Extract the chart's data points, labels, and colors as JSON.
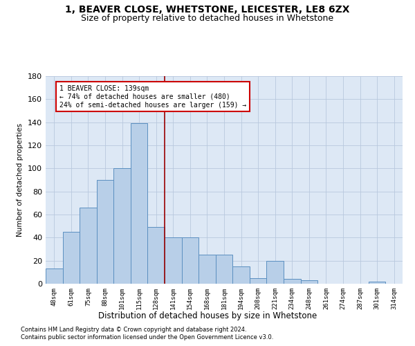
{
  "title": "1, BEAVER CLOSE, WHETSTONE, LEICESTER, LE8 6ZX",
  "subtitle": "Size of property relative to detached houses in Whetstone",
  "xlabel": "Distribution of detached houses by size in Whetstone",
  "ylabel": "Number of detached properties",
  "categories": [
    "48sqm",
    "61sqm",
    "75sqm",
    "88sqm",
    "101sqm",
    "115sqm",
    "128sqm",
    "141sqm",
    "154sqm",
    "168sqm",
    "181sqm",
    "194sqm",
    "208sqm",
    "221sqm",
    "234sqm",
    "248sqm",
    "261sqm",
    "274sqm",
    "287sqm",
    "301sqm",
    "314sqm"
  ],
  "values": [
    13,
    45,
    66,
    90,
    100,
    139,
    49,
    40,
    40,
    25,
    25,
    15,
    5,
    20,
    4,
    3,
    0,
    0,
    0,
    2,
    0
  ],
  "bar_color": "#b8cfe8",
  "bar_edge_color": "#5b8fc0",
  "vline_x": 6.5,
  "vline_color": "#990000",
  "ylim": [
    0,
    180
  ],
  "yticks": [
    0,
    20,
    40,
    60,
    80,
    100,
    120,
    140,
    160,
    180
  ],
  "annotation_line1": "1 BEAVER CLOSE: 139sqm",
  "annotation_line2": "← 74% of detached houses are smaller (480)",
  "annotation_line3": "24% of semi-detached houses are larger (159) →",
  "annotation_box_color": "#cc0000",
  "footer1": "Contains HM Land Registry data © Crown copyright and database right 2024.",
  "footer2": "Contains public sector information licensed under the Open Government Licence v3.0.",
  "title_fontsize": 10,
  "subtitle_fontsize": 9,
  "ax_facecolor": "#dde8f5",
  "background_color": "#ffffff",
  "grid_color": "#b8c8de"
}
